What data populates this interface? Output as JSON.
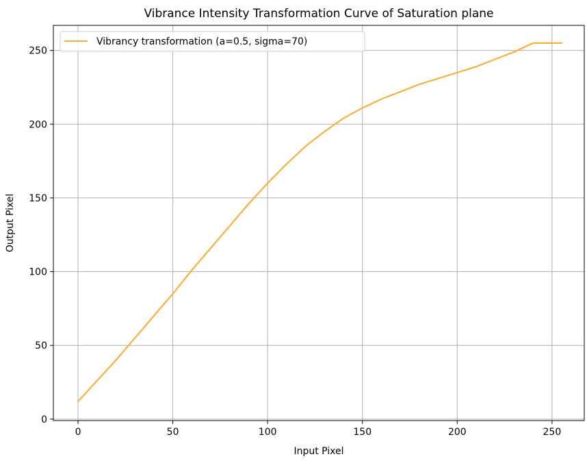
{
  "chart_data": {
    "type": "line",
    "title": "Vibrance Intensity Transformation Curve of Saturation plane",
    "xlabel": "Input Pixel",
    "ylabel": "Output Pixel",
    "xlim": [
      -13,
      267
    ],
    "ylim": [
      -1,
      267
    ],
    "xticks": [
      0,
      50,
      100,
      150,
      200,
      250
    ],
    "yticks": [
      0,
      50,
      100,
      150,
      200,
      250
    ],
    "grid": true,
    "legend_position": "top-left",
    "series": [
      {
        "name": "Vibrancy transformation (a=0.5, sigma=70)",
        "color": "#f5b041",
        "x": [
          0,
          10,
          20,
          30,
          40,
          50,
          60,
          70,
          80,
          90,
          100,
          110,
          120,
          130,
          140,
          150,
          160,
          170,
          180,
          190,
          200,
          210,
          220,
          230,
          235,
          240,
          245,
          250,
          255
        ],
        "y": [
          12,
          26,
          40,
          55,
          70,
          85,
          101,
          116,
          131,
          146,
          160,
          173,
          185,
          195,
          204,
          211,
          217,
          222,
          227,
          231,
          235,
          239,
          244,
          249,
          252,
          255,
          255,
          255,
          255
        ]
      }
    ]
  }
}
